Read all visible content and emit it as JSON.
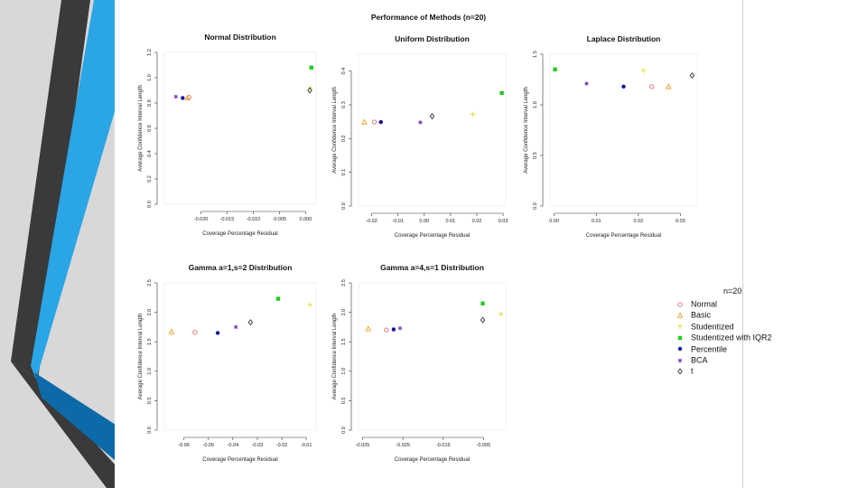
{
  "figure_title": "Performance of Methods (n=20)",
  "colors": {
    "Normal": "#e07070",
    "Basic": "#e8a020",
    "Studentized": "#e8e040",
    "Studentized with IQR2": "#22cc22",
    "Percentile": "#1010a0",
    "BCA": "#8040c0",
    "t": "#333333",
    "stripe_dark": "#3a3a3a",
    "stripe_blue": "#2aa5e6",
    "stripe_grey": "#d8d8d8",
    "stripe_navy": "#0d6aa8"
  },
  "legend": {
    "title": "n=20",
    "items": [
      {
        "name": "Normal",
        "shape": "circle-open"
      },
      {
        "name": "Basic",
        "shape": "triangle-open"
      },
      {
        "name": "Studentized",
        "shape": "plus"
      },
      {
        "name": "Studentized with IQR2",
        "shape": "square-filled"
      },
      {
        "name": "Percentile",
        "shape": "circle-filled"
      },
      {
        "name": "BCA",
        "shape": "star"
      },
      {
        "name": "t",
        "shape": "diamond-open"
      }
    ]
  },
  "chart_data": [
    {
      "type": "scatter",
      "title": "Normal Distribution",
      "xlabel": "Coverage Percentage Residual",
      "ylabel": "Average Confidence Interval Length",
      "xlim": [
        -0.027,
        0.002
      ],
      "ylim": [
        0,
        1.2
      ],
      "xticks": [
        -0.02,
        -0.015,
        -0.01,
        -0.005,
        0.0
      ],
      "xtick_labels": [
        "-0.020",
        "-0.015",
        "-0.010",
        "-0.005",
        "0.000"
      ],
      "yticks": [
        0.0,
        0.2,
        0.4,
        0.6,
        0.8,
        1.0,
        1.2
      ],
      "ytick_labels": [
        "0.0",
        "0.2",
        "0.4",
        "0.6",
        "0.8",
        "1.0",
        "1.2"
      ],
      "points": [
        {
          "series": "BCA",
          "x": -0.0248,
          "y": 0.85
        },
        {
          "series": "Percentile",
          "x": -0.0235,
          "y": 0.84
        },
        {
          "series": "Normal",
          "x": -0.0223,
          "y": 0.845
        },
        {
          "series": "Basic",
          "x": -0.0226,
          "y": 0.84
        },
        {
          "series": "Studentized with IQR2",
          "x": 0.0011,
          "y": 1.08
        },
        {
          "series": "Studentized",
          "x": 0.0009,
          "y": 0.92
        },
        {
          "series": "t",
          "x": 0.0008,
          "y": 0.9
        }
      ]
    },
    {
      "type": "scatter",
      "title": "Uniform Distribution",
      "xlabel": "Coverage Percentage Residual",
      "ylabel": "Average Confidence Interval Length",
      "xlim": [
        -0.025,
        0.031
      ],
      "ylim": [
        0,
        0.45
      ],
      "xticks": [
        -0.02,
        -0.01,
        0.0,
        0.01,
        0.02,
        0.03
      ],
      "xtick_labels": [
        "-0.02",
        "-0.01",
        "0.00",
        "0.01",
        "0.02",
        "0.03"
      ],
      "yticks": [
        0.0,
        0.1,
        0.2,
        0.3,
        0.4
      ],
      "ytick_labels": [
        "0.0",
        "0.1",
        "0.2",
        "0.3",
        "0.4"
      ],
      "points": [
        {
          "series": "Basic",
          "x": -0.0228,
          "y": 0.249
        },
        {
          "series": "Normal",
          "x": -0.019,
          "y": 0.249
        },
        {
          "series": "Percentile",
          "x": -0.0165,
          "y": 0.249
        },
        {
          "series": "BCA",
          "x": -0.0015,
          "y": 0.248
        },
        {
          "series": "t",
          "x": 0.003,
          "y": 0.266
        },
        {
          "series": "Studentized",
          "x": 0.0185,
          "y": 0.272
        },
        {
          "series": "Studentized with IQR2",
          "x": 0.0295,
          "y": 0.335
        }
      ]
    },
    {
      "type": "scatter",
      "title": "Laplace Distribution",
      "xlabel": "Coverage Percentage Residual",
      "ylabel": "Average Confidence Interval Length",
      "xlim": [
        -0.001,
        0.034
      ],
      "ylim": [
        0,
        1.5
      ],
      "xticks": [
        0.0,
        0.01,
        0.02,
        0.03
      ],
      "xtick_labels": [
        "0.00",
        "0.01",
        "0.02",
        "0.03"
      ],
      "yticks": [
        0.0,
        0.5,
        1.0,
        1.5
      ],
      "ytick_labels": [
        "0.0",
        "0.5",
        "1.0",
        "1.5"
      ],
      "points": [
        {
          "series": "Studentized with IQR2",
          "x": 0.0002,
          "y": 1.35
        },
        {
          "series": "BCA",
          "x": 0.0077,
          "y": 1.21
        },
        {
          "series": "Percentile",
          "x": 0.0165,
          "y": 1.18
        },
        {
          "series": "Studentized",
          "x": 0.0212,
          "y": 1.34
        },
        {
          "series": "Normal",
          "x": 0.0232,
          "y": 1.18
        },
        {
          "series": "Basic",
          "x": 0.0272,
          "y": 1.18
        },
        {
          "series": "t",
          "x": 0.0328,
          "y": 1.29
        }
      ]
    },
    {
      "type": "scatter",
      "title": "Gamma a=1,s=2 Distribution",
      "xlabel": "Coverage Percentage Residual",
      "ylabel": "Average Confidence Interval Length",
      "xlim": [
        -0.068,
        -0.006
      ],
      "ylim": [
        0,
        2.5
      ],
      "xticks": [
        -0.06,
        -0.05,
        -0.04,
        -0.03,
        -0.02,
        -0.01
      ],
      "xtick_labels": [
        "-0.06",
        "-0.05",
        "-0.04",
        "-0.03",
        "-0.02",
        "-0.01"
      ],
      "yticks": [
        0.0,
        0.5,
        1.0,
        1.5,
        2.0,
        2.5
      ],
      "ytick_labels": [
        "0.0",
        "0.5",
        "1.0",
        "1.5",
        "2.0",
        "2.5"
      ],
      "points": [
        {
          "series": "Basic",
          "x": -0.0651,
          "y": 1.67
        },
        {
          "series": "Normal",
          "x": -0.0555,
          "y": 1.66
        },
        {
          "series": "Percentile",
          "x": -0.0462,
          "y": 1.65
        },
        {
          "series": "BCA",
          "x": -0.0388,
          "y": 1.75
        },
        {
          "series": "t",
          "x": -0.0328,
          "y": 1.83
        },
        {
          "series": "Studentized with IQR2",
          "x": -0.0215,
          "y": 2.23
        },
        {
          "series": "Studentized",
          "x": -0.0085,
          "y": 2.13
        }
      ]
    },
    {
      "type": "scatter",
      "title": "Gamma a=4,s=1 Distribution",
      "xlabel": "Coverage Percentage Residual",
      "ylabel": "Average Confidence Interval Length",
      "xlim": [
        -0.036,
        0.0005
      ],
      "ylim": [
        0,
        2.5
      ],
      "xticks": [
        -0.035,
        -0.025,
        -0.015,
        -0.005
      ],
      "xtick_labels": [
        "-0.035",
        "-0.025",
        "-0.015",
        "-0.005"
      ],
      "yticks": [
        0.0,
        0.5,
        1.0,
        1.5,
        2.0,
        2.5
      ],
      "ytick_labels": [
        "0.0",
        "0.5",
        "1.0",
        "1.5",
        "2.0",
        "2.5"
      ],
      "points": [
        {
          "series": "Basic",
          "x": -0.0336,
          "y": 1.72
        },
        {
          "series": "Normal",
          "x": -0.0291,
          "y": 1.7
        },
        {
          "series": "Percentile",
          "x": -0.0273,
          "y": 1.71
        },
        {
          "series": "BCA",
          "x": -0.0257,
          "y": 1.73
        },
        {
          "series": "Studentized with IQR2",
          "x": -0.0052,
          "y": 2.15
        },
        {
          "series": "t",
          "x": -0.0052,
          "y": 1.87
        },
        {
          "series": "Studentized",
          "x": -0.0007,
          "y": 1.97
        }
      ]
    }
  ]
}
